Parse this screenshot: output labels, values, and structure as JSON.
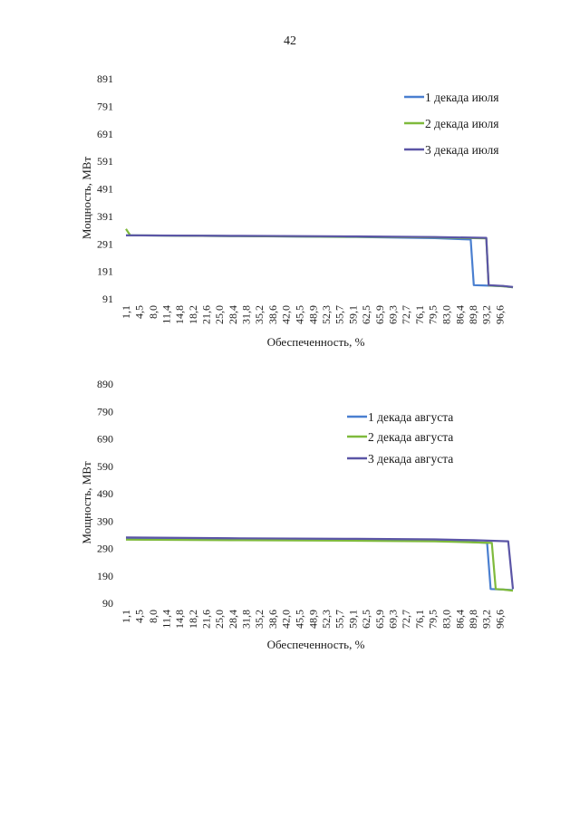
{
  "page": {
    "number": "42"
  },
  "chart_data": [
    {
      "type": "line",
      "title": "",
      "xlabel": "Обеспеченность, %",
      "ylabel": "Мощность, МВт",
      "ylim": [
        91,
        891
      ],
      "yticks": [
        "891",
        "791",
        "691",
        "591",
        "491",
        "391",
        "291",
        "191",
        "91"
      ],
      "yticks_values": [
        891,
        791,
        691,
        591,
        491,
        391,
        291,
        191,
        91
      ],
      "xlim": [
        1.1,
        100
      ],
      "xticks": [
        "1,1",
        "4,5",
        "8,0",
        "11,4",
        "14,8",
        "18,2",
        "21,6",
        "25,0",
        "28,4",
        "31,8",
        "35,2",
        "38,6",
        "42,0",
        "45,5",
        "48,9",
        "52,3",
        "55,7",
        "59,1",
        "62,5",
        "65,9",
        "69,3",
        "72,7",
        "76,1",
        "79,5",
        "83,0",
        "86,4",
        "89,8",
        "93,2",
        "96,6"
      ],
      "xticks_values": [
        1.1,
        4.5,
        8.0,
        11.4,
        14.8,
        18.2,
        21.6,
        25.0,
        28.4,
        31.8,
        35.2,
        38.6,
        42.0,
        45.5,
        48.9,
        52.3,
        55.7,
        59.1,
        62.5,
        65.9,
        69.3,
        72.7,
        76.1,
        79.5,
        83.0,
        86.4,
        89.8,
        93.2,
        96.6
      ],
      "legend": "top-right",
      "series": [
        {
          "name": "1 декада июля",
          "color": "#4a7fd0",
          "x": [
            1.1,
            30,
            60,
            80,
            89.2,
            90.0,
            94.0,
            97.5,
            100
          ],
          "y": [
            322,
            319,
            316,
            312,
            307,
            141,
            139,
            137,
            133
          ]
        },
        {
          "name": "2 декада июля",
          "color": "#7fba3c",
          "x": [
            1.1,
            2.2,
            30,
            60,
            80,
            93.2,
            93.8,
            97.5,
            100
          ],
          "y": [
            345,
            322,
            319,
            317,
            315,
            311,
            140,
            137,
            133
          ]
        },
        {
          "name": "3 декада июля",
          "color": "#5b55a6",
          "x": [
            1.1,
            30,
            60,
            80,
            93.2,
            93.8,
            97.5,
            100
          ],
          "y": [
            322,
            320,
            318,
            316,
            313,
            141,
            138,
            134
          ]
        }
      ]
    },
    {
      "type": "line",
      "title": "",
      "xlabel": "Обеспеченность, %",
      "ylabel": "Мощность, МВт",
      "ylim": [
        90,
        890
      ],
      "yticks": [
        "890",
        "790",
        "690",
        "590",
        "490",
        "390",
        "290",
        "190",
        "90"
      ],
      "yticks_values": [
        890,
        790,
        690,
        590,
        490,
        390,
        290,
        190,
        90
      ],
      "xlim": [
        1.1,
        100
      ],
      "xticks": [
        "1,1",
        "4,5",
        "8,0",
        "11,4",
        "14,8",
        "18,2",
        "21,6",
        "25,0",
        "28,4",
        "31,8",
        "35,2",
        "38,6",
        "42,0",
        "45,5",
        "48,9",
        "52,3",
        "55,7",
        "59,1",
        "62,5",
        "65,9",
        "69,3",
        "72,7",
        "76,1",
        "79,5",
        "83,0",
        "86,4",
        "89,8",
        "93,2",
        "96,6"
      ],
      "xticks_values": [
        1.1,
        4.5,
        8.0,
        11.4,
        14.8,
        18.2,
        21.6,
        25.0,
        28.4,
        31.8,
        35.2,
        38.6,
        42.0,
        45.5,
        48.9,
        52.3,
        55.7,
        59.1,
        62.5,
        65.9,
        69.3,
        72.7,
        76.1,
        79.5,
        83.0,
        86.4,
        89.8,
        93.2,
        96.6
      ],
      "legend": "top-right",
      "series": [
        {
          "name": "1 декада августа",
          "color": "#4a7fd0",
          "x": [
            1.1,
            30,
            60,
            80,
            93.4,
            94.3,
            97.5,
            100
          ],
          "y": [
            325,
            324,
            323,
            321,
            310,
            142,
            140,
            138
          ]
        },
        {
          "name": "2 декада августа",
          "color": "#7fba3c",
          "x": [
            1.1,
            30,
            60,
            80,
            94.6,
            95.6,
            97.5,
            100
          ],
          "y": [
            322,
            320,
            318,
            316,
            310,
            142,
            140,
            136
          ]
        },
        {
          "name": "3 декада августа",
          "color": "#5b55a6",
          "x": [
            1.1,
            30,
            60,
            80,
            90,
            98.8,
            100
          ],
          "y": [
            330,
            327,
            325,
            323,
            320,
            316,
            142
          ]
        }
      ]
    }
  ]
}
